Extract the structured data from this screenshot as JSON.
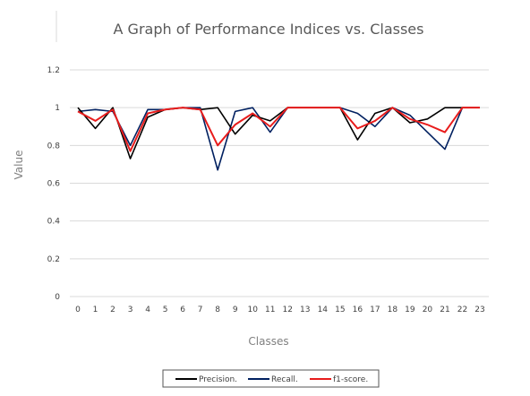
{
  "chart_data": {
    "type": "line",
    "title": "A Graph of Performance Indices vs. Classes",
    "xlabel": "Classes",
    "ylabel": "Value",
    "ylim": [
      0,
      1.2
    ],
    "yticks": [
      "0",
      "0.2",
      "0.4",
      "0.6",
      "0.8",
      "1",
      "1.2"
    ],
    "ytick_values": [
      0,
      0.2,
      0.4,
      0.6,
      0.8,
      1.0,
      1.2
    ],
    "x": [
      "0",
      "1",
      "2",
      "3",
      "4",
      "5",
      "6",
      "7",
      "8",
      "9",
      "10",
      "11",
      "12",
      "13",
      "14",
      "15",
      "16",
      "17",
      "18",
      "19",
      "20",
      "21",
      "22",
      "23"
    ],
    "grid": true,
    "legend_position": "bottom",
    "series": [
      {
        "name": "Precision.",
        "color": "#000000",
        "values": [
          1.0,
          0.89,
          1.0,
          0.73,
          0.95,
          0.99,
          1.0,
          0.99,
          1.0,
          0.86,
          0.96,
          0.93,
          1.0,
          1.0,
          1.0,
          1.0,
          0.83,
          0.97,
          1.0,
          0.92,
          0.94,
          1.0,
          1.0,
          1.0
        ]
      },
      {
        "name": "Recall.",
        "color": "#002060",
        "values": [
          0.98,
          0.99,
          0.98,
          0.8,
          0.99,
          0.99,
          1.0,
          1.0,
          0.67,
          0.98,
          1.0,
          0.87,
          1.0,
          1.0,
          1.0,
          1.0,
          0.97,
          0.9,
          1.0,
          0.96,
          0.87,
          0.78,
          1.0,
          1.0
        ]
      },
      {
        "name": "f1-score.",
        "color": "#e81c1c",
        "values": [
          0.98,
          0.93,
          0.99,
          0.77,
          0.97,
          0.99,
          1.0,
          0.99,
          0.8,
          0.91,
          0.97,
          0.9,
          1.0,
          1.0,
          1.0,
          1.0,
          0.89,
          0.93,
          1.0,
          0.94,
          0.91,
          0.87,
          1.0,
          1.0
        ]
      }
    ]
  }
}
